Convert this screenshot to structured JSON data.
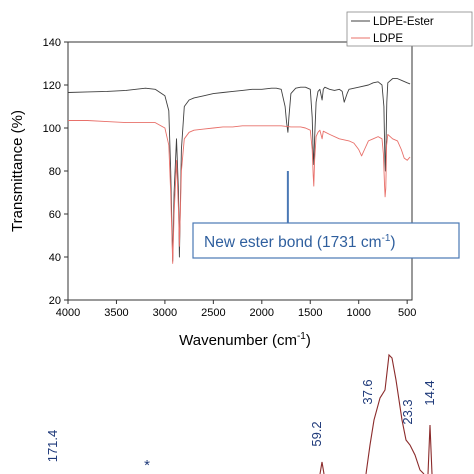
{
  "chart_data": [
    {
      "type": "line",
      "xlabel": "Wavenumber (cm",
      "xlabel_sup": "-1",
      "xlabel_end": ")",
      "ylabel": "Transmittance (%)",
      "xlim": [
        4000,
        450
      ],
      "ylim": [
        20,
        140
      ],
      "x_reversed": true,
      "xticks": [
        "4000",
        "3500",
        "3000",
        "2500",
        "2000",
        "1500",
        "1000",
        "500"
      ],
      "yticks": [
        "20",
        "40",
        "60",
        "80",
        "100",
        "120",
        "140"
      ],
      "legend": {
        "placement": "top-right",
        "entries": [
          {
            "label": "LDPE-Ester",
            "color": "#404040"
          },
          {
            "label": "LDPE",
            "color": "#e8706a"
          }
        ]
      },
      "annotation": {
        "text": "New ester bond (1731 cm",
        "sup": "-1",
        "end": ")",
        "arrow_x": 1731,
        "arrow_from_y": 80,
        "arrow_to_y": 50,
        "box_color": "#4a78b5"
      },
      "series": [
        {
          "name": "LDPE-Ester",
          "color": "#404040",
          "points": [
            [
              4000,
              116.5
            ],
            [
              3800,
              116.8
            ],
            [
              3600,
              117
            ],
            [
              3400,
              117.5
            ],
            [
              3200,
              118.5
            ],
            [
              3100,
              118
            ],
            [
              3000,
              115
            ],
            [
              2960,
              108
            ],
            [
              2940,
              80
            ],
            [
              2920,
              38
            ],
            [
              2905,
              70
            ],
            [
              2880,
              95
            ],
            [
              2860,
              70
            ],
            [
              2850,
              40
            ],
            [
              2830,
              90
            ],
            [
              2800,
              110
            ],
            [
              2750,
              113
            ],
            [
              2700,
              114
            ],
            [
              2600,
              115
            ],
            [
              2500,
              116
            ],
            [
              2400,
              116.5
            ],
            [
              2300,
              117
            ],
            [
              2200,
              117.5
            ],
            [
              2100,
              118
            ],
            [
              2000,
              118
            ],
            [
              1900,
              118.5
            ],
            [
              1850,
              118.5
            ],
            [
              1800,
              118
            ],
            [
              1760,
              110
            ],
            [
              1745,
              103
            ],
            [
              1731,
              98
            ],
            [
              1720,
              105
            ],
            [
              1700,
              116
            ],
            [
              1650,
              118.5
            ],
            [
              1600,
              119
            ],
            [
              1550,
              119
            ],
            [
              1500,
              118
            ],
            [
              1480,
              105
            ],
            [
              1470,
              88
            ],
            [
              1463,
              83
            ],
            [
              1455,
              95
            ],
            [
              1440,
              112
            ],
            [
              1420,
              117
            ],
            [
              1400,
              118
            ],
            [
              1378,
              113
            ],
            [
              1365,
              118
            ],
            [
              1350,
              119
            ],
            [
              1300,
              118
            ],
            [
              1250,
              117.5
            ],
            [
              1200,
              118
            ],
            [
              1170,
              117
            ],
            [
              1150,
              112
            ],
            [
              1120,
              116
            ],
            [
              1100,
              118
            ],
            [
              1000,
              119
            ],
            [
              900,
              120
            ],
            [
              850,
              121
            ],
            [
              800,
              121.5
            ],
            [
              760,
              120
            ],
            [
              740,
              110
            ],
            [
              730,
              85
            ],
            [
              725,
              80
            ],
            [
              719,
              90
            ],
            [
              710,
              112
            ],
            [
              700,
              121
            ],
            [
              650,
              123
            ],
            [
              600,
              123
            ],
            [
              550,
              122
            ],
            [
              500,
              121
            ],
            [
              470,
              120.5
            ]
          ]
        },
        {
          "name": "LDPE",
          "color": "#e8706a",
          "points": [
            [
              4000,
              103.5
            ],
            [
              3800,
              103.5
            ],
            [
              3600,
              103
            ],
            [
              3400,
              102.5
            ],
            [
              3200,
              102.5
            ],
            [
              3100,
              102.5
            ],
            [
              3000,
              100
            ],
            [
              2960,
              92
            ],
            [
              2940,
              70
            ],
            [
              2920,
              37
            ],
            [
              2905,
              60
            ],
            [
              2880,
              85
            ],
            [
              2860,
              62
            ],
            [
              2850,
              45
            ],
            [
              2830,
              80
            ],
            [
              2800,
              95
            ],
            [
              2750,
              98
            ],
            [
              2700,
              99
            ],
            [
              2600,
              99.5
            ],
            [
              2500,
              100
            ],
            [
              2400,
              100.5
            ],
            [
              2300,
              100.5
            ],
            [
              2200,
              101
            ],
            [
              2100,
              101
            ],
            [
              2000,
              101
            ],
            [
              1900,
              101
            ],
            [
              1800,
              101
            ],
            [
              1700,
              100.5
            ],
            [
              1600,
              100.5
            ],
            [
              1550,
              100
            ],
            [
              1500,
              99
            ],
            [
              1480,
              90
            ],
            [
              1470,
              78
            ],
            [
              1463,
              73
            ],
            [
              1455,
              85
            ],
            [
              1440,
              96
            ],
            [
              1420,
              98
            ],
            [
              1400,
              99
            ],
            [
              1378,
              95
            ],
            [
              1365,
              98.5
            ],
            [
              1300,
              97
            ],
            [
              1200,
              95
            ],
            [
              1100,
              94
            ],
            [
              1050,
              93
            ],
            [
              1000,
              90
            ],
            [
              970,
              87
            ],
            [
              940,
              90
            ],
            [
              900,
              94
            ],
            [
              850,
              95
            ],
            [
              800,
              96
            ],
            [
              760,
              95
            ],
            [
              745,
              88
            ],
            [
              735,
              75
            ],
            [
              728,
              68
            ],
            [
              720,
              72
            ],
            [
              712,
              92
            ],
            [
              700,
              97
            ],
            [
              650,
              95
            ],
            [
              600,
              94
            ],
            [
              560,
              90
            ],
            [
              530,
              86
            ],
            [
              500,
              85
            ],
            [
              480,
              86
            ],
            [
              470,
              86.5
            ]
          ]
        }
      ]
    },
    {
      "type": "line",
      "partial": true,
      "peak_labels": [
        "171.4",
        "59.2",
        "37.6",
        "23.3",
        "14.4"
      ],
      "marker": "*",
      "label_color": "#1f3a7a",
      "line_color": "#8b2b2b"
    }
  ]
}
